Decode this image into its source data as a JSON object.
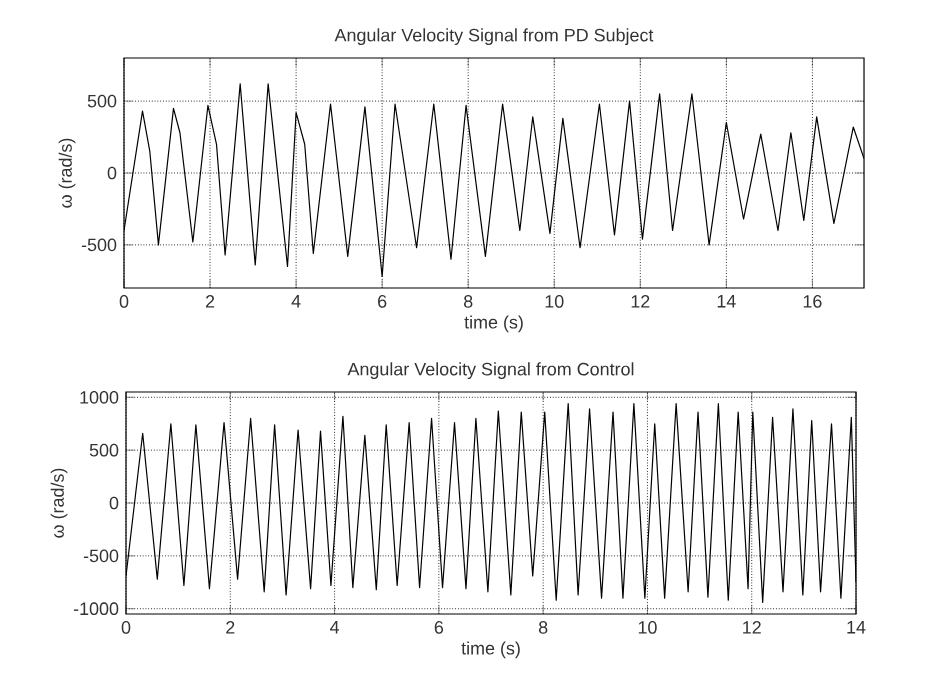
{
  "chart_data": [
    {
      "type": "line",
      "title": "Angular Velocity Signal from PD Subject",
      "xlabel": "time (s)",
      "ylabel": "ω (rad/s)",
      "xlim": [
        0,
        17.2
      ],
      "ylim": [
        -800,
        800
      ],
      "xticks": [
        0,
        2,
        4,
        6,
        8,
        10,
        12,
        14,
        16
      ],
      "yticks": [
        -500,
        0,
        500
      ],
      "grid": true,
      "line_style": "solid",
      "series": [
        {
          "color": "#000000",
          "x": [
            0,
            0.43,
            0.6,
            0.8,
            1.15,
            1.3,
            1.6,
            1.95,
            2.15,
            2.35,
            2.7,
            3.05,
            3.35,
            3.8,
            4.0,
            4.2,
            4.4,
            4.8,
            5.2,
            5.6,
            6.0,
            6.3,
            6.8,
            7.2,
            7.6,
            7.95,
            8.4,
            8.8,
            9.2,
            9.5,
            9.9,
            10.2,
            10.6,
            11.05,
            11.4,
            11.75,
            12.05,
            12.45,
            12.75,
            13.2,
            13.6,
            14.0,
            14.4,
            14.8,
            15.2,
            15.5,
            15.8,
            16.1,
            16.5,
            16.95,
            17.2
          ],
          "values": [
            -400,
            430,
            150,
            -500,
            450,
            280,
            -480,
            470,
            200,
            -570,
            620,
            -640,
            620,
            -650,
            420,
            200,
            -560,
            480,
            -580,
            460,
            -720,
            480,
            -520,
            480,
            -600,
            470,
            -580,
            480,
            -400,
            390,
            -420,
            380,
            -520,
            480,
            -430,
            500,
            -460,
            550,
            -400,
            550,
            -500,
            350,
            -320,
            270,
            -400,
            280,
            -330,
            390,
            -350,
            320,
            100
          ]
        }
      ]
    },
    {
      "type": "line",
      "title": "Angular Velocity Signal from Control",
      "xlabel": "time (s)",
      "ylabel": "ω (rad/s)",
      "xlim": [
        0,
        14
      ],
      "ylim": [
        -1050,
        1050
      ],
      "xticks": [
        0,
        2,
        4,
        6,
        8,
        10,
        12,
        14
      ],
      "yticks": [
        -1000,
        -500,
        0,
        500,
        1000
      ],
      "grid": true,
      "line_style": "solid",
      "series": [
        {
          "color": "#000000",
          "x": [
            0,
            0.32,
            0.6,
            0.86,
            1.11,
            1.34,
            1.6,
            1.88,
            2.14,
            2.39,
            2.65,
            2.85,
            3.07,
            3.3,
            3.54,
            3.73,
            3.93,
            4.16,
            4.35,
            4.58,
            4.8,
            4.99,
            5.2,
            5.43,
            5.63,
            5.86,
            6.07,
            6.3,
            6.52,
            6.71,
            6.94,
            7.14,
            7.38,
            7.58,
            7.8,
            8.03,
            8.25,
            8.48,
            8.67,
            8.89,
            9.12,
            9.34,
            9.53,
            9.74,
            9.95,
            10.14,
            10.33,
            10.55,
            10.78,
            10.97,
            11.16,
            11.36,
            11.55,
            11.74,
            11.93,
            12.02,
            12.21,
            12.4,
            12.6,
            12.79,
            12.98,
            13.15,
            13.32,
            13.53,
            13.71,
            13.91,
            14.0
          ],
          "values": [
            -690,
            660,
            -720,
            750,
            -780,
            740,
            -810,
            760,
            -720,
            800,
            -840,
            740,
            -870,
            690,
            -810,
            680,
            -780,
            820,
            -800,
            640,
            -820,
            740,
            -780,
            760,
            -800,
            800,
            -800,
            760,
            -810,
            800,
            -840,
            870,
            -870,
            860,
            -690,
            860,
            -920,
            940,
            -870,
            890,
            -900,
            860,
            -900,
            940,
            -900,
            750,
            -900,
            940,
            -840,
            860,
            -890,
            940,
            -920,
            860,
            -810,
            860,
            -940,
            810,
            -840,
            890,
            -870,
            780,
            -840,
            750,
            -900,
            810,
            -750
          ]
        }
      ]
    }
  ]
}
